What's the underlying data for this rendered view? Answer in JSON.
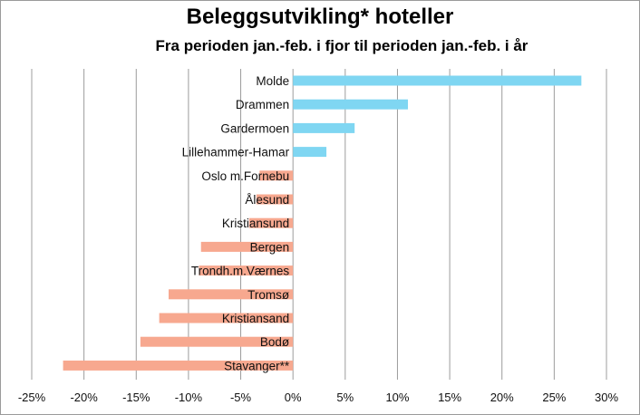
{
  "title": "Beleggsutvikling* hoteller",
  "subtitle": "Fra perioden jan.-feb. i fjor til perioden jan.-feb. i år",
  "colors": {
    "positive": "#7fd6f2",
    "negative": "#f7a88f",
    "grid": "#9c9c9c"
  },
  "chart_data": {
    "type": "bar",
    "orientation": "horizontal",
    "title": "Beleggsutvikling* hoteller",
    "subtitle": "Fra perioden jan.-feb. i fjor til perioden jan.-feb. i år",
    "categories": [
      "Molde",
      "Drammen",
      "Gardermoen",
      "Lillehammer-Hamar",
      "Oslo m.Fornebu",
      "Ålesund",
      "Kristiansund",
      "Bergen",
      "Trondh.m.Værnes",
      "Tromsø",
      "Kristiansand",
      "Bodø",
      "Stavanger**"
    ],
    "values": [
      27.6,
      11.0,
      5.9,
      3.2,
      -3.2,
      -3.5,
      -4.2,
      -8.8,
      -9.0,
      -11.9,
      -12.8,
      -14.6,
      -22.0
    ],
    "unit": "%",
    "xlim": [
      -25,
      30
    ],
    "xticks": [
      -25,
      -20,
      -15,
      -10,
      -5,
      0,
      5,
      10,
      15,
      20,
      25,
      30
    ],
    "xtick_labels": [
      "-25%",
      "-20%",
      "-15%",
      "-10%",
      "-5%",
      "0%",
      "5%",
      "10%",
      "15%",
      "20%",
      "25%",
      "30%"
    ],
    "grid": "vertical",
    "legend": "none"
  }
}
